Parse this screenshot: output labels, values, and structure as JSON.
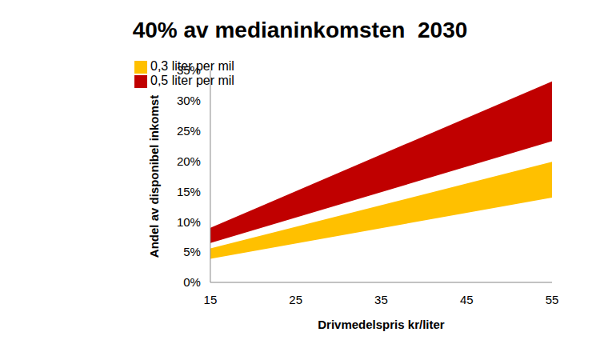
{
  "chart_data": {
    "type": "area",
    "title": "40% av medianinkomsten  2030",
    "x_label": "Drivmedelspris kr/liter",
    "y_label": "Andel av disponibel inkomst",
    "x": [
      15,
      55
    ],
    "series": [
      {
        "name": "0,5 liter per mil",
        "color": "#c00000",
        "values": [
          [
            6.5,
            9.0
          ],
          [
            23.3,
            33.2
          ]
        ]
      },
      {
        "name": "0,3 liter per mil",
        "color": "#ffc000",
        "values": [
          [
            3.9,
            5.6
          ],
          [
            14.0,
            19.9
          ]
        ]
      }
    ],
    "xlim": [
      15,
      55
    ],
    "xticks": [
      15,
      25,
      35,
      45,
      55
    ],
    "ylim": [
      0,
      35
    ],
    "yticks": [
      {
        "value": 0,
        "label": "0%"
      },
      {
        "value": 5,
        "label": "5%"
      },
      {
        "value": 10,
        "label": "10%"
      },
      {
        "value": 15,
        "label": "15%"
      },
      {
        "value": 20,
        "label": "20%"
      },
      {
        "value": 25,
        "label": "25%"
      },
      {
        "value": 30,
        "label": "30%"
      },
      {
        "value": 35,
        "label": "35%"
      }
    ],
    "grid": false,
    "legend": "upper left"
  }
}
